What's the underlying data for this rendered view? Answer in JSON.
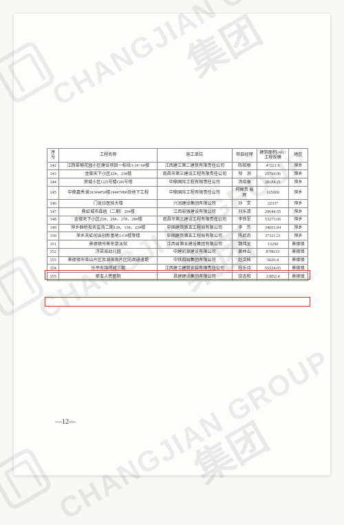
{
  "table": {
    "headers": [
      "序号",
      "工程名称",
      "施工单位",
      "项目经理",
      "建筑面积(㎡)\n/工程规模",
      "地区"
    ],
    "rows": [
      {
        "idx": "142",
        "name": "江西翠榕花园小区建设项目一标段3-1#~6#楼",
        "unit": "江西建工第二建筑有限责任公司",
        "mgr": "陈柏根",
        "area": "47221.6",
        "reg": "萍乡"
      },
      {
        "idx": "143",
        "name": "金御天下小区22#、23#楼",
        "unit": "南昌市第三建设工程有限责任公司",
        "mgr": "邬　洪",
        "area": "25769.06",
        "reg": "萍乡"
      },
      {
        "idx": "144",
        "name": "荣城小区G25号楼G06号塔",
        "unit": "中鼎国际工程有限责任公司",
        "mgr": "汤晓泰",
        "area": "28184.21",
        "reg": "萍乡"
      },
      {
        "idx": "145",
        "name": "中鼎嘉秀湖2#3#4#5#楼1#4#7#8#及地下工程",
        "unit": "中鼎国际工程有限责任公司",
        "mgr": "何棉贵\n易　辉",
        "area": "165000",
        "reg": "萍乡"
      },
      {
        "idx": "146",
        "name": "门急诊医技大楼",
        "unit": "兴润建设集团有限公司",
        "mgr": "孙　文",
        "area": "22337",
        "reg": "萍乡"
      },
      {
        "idx": "147",
        "name": "鼎虹城市森居（二期）26#楼",
        "unit": "江西宏强建设有限公司",
        "mgr": "刘乐清",
        "area": "29644.55",
        "reg": "萍乡"
      },
      {
        "idx": "148",
        "name": "金御天下小区25#、26#、27#、28#楼",
        "unit": "南昌市第三建设工程有限责任公司",
        "mgr": "李铁军",
        "area": "53273.66",
        "reg": "萍乡"
      },
      {
        "idx": "149",
        "name": "萍乡群桥投天玺湾二期12#、13#、23#楼",
        "unit": "中国建筑第五工程局有限公司",
        "mgr": "李　芳",
        "area": "34661.84",
        "reg": "萍乡"
      },
      {
        "idx": "150",
        "name": "萍乡天虹创业创新基地1-C#楼等楼",
        "unit": "中国建筑第五工程局有限公司",
        "mgr": "陈武奇",
        "area": "37321.21",
        "reg": "萍乡"
      },
      {
        "idx": "151",
        "name": "景德镇市景东游泳馆",
        "unit": "江西省第五建设集团有限公司",
        "mgr": "魏伟龙",
        "area": "13290",
        "reg": "景德镇"
      },
      {
        "idx": "152",
        "name": "浮梁县幼儿园",
        "unit": "中建凯源建设有限公司",
        "mgr": "黄林山",
        "area": "8780.53",
        "reg": "景德镇"
      },
      {
        "idx": "153",
        "name": "景德镇市茶山片区及湖田南片区防洪通道堤",
        "unit": "中铁四局集团有限公司",
        "mgr": "赵文岐",
        "area": "5626.4",
        "reg": "景德镇"
      },
      {
        "idx": "154",
        "name": "乐平市锦绣城三期",
        "unit": "江西建工建筑安装有限责任公司",
        "mgr": "程乐诗",
        "area": "55324.05",
        "reg": "景德镇"
      },
      {
        "idx": "155",
        "name": "第五人民医院",
        "unit": "昌建建设集团有限公司",
        "mgr": "饶志和",
        "area": "13852.4",
        "reg": "景德镇"
      }
    ]
  },
  "page_number": "—12—",
  "watermark": {
    "english": "CHANGJIAN GROUP",
    "chinese": "集团"
  },
  "colors": {
    "highlight": "#d9302a",
    "border": "#888888",
    "text": "#333333",
    "wm": "rgba(0,0,0,0.07)"
  }
}
